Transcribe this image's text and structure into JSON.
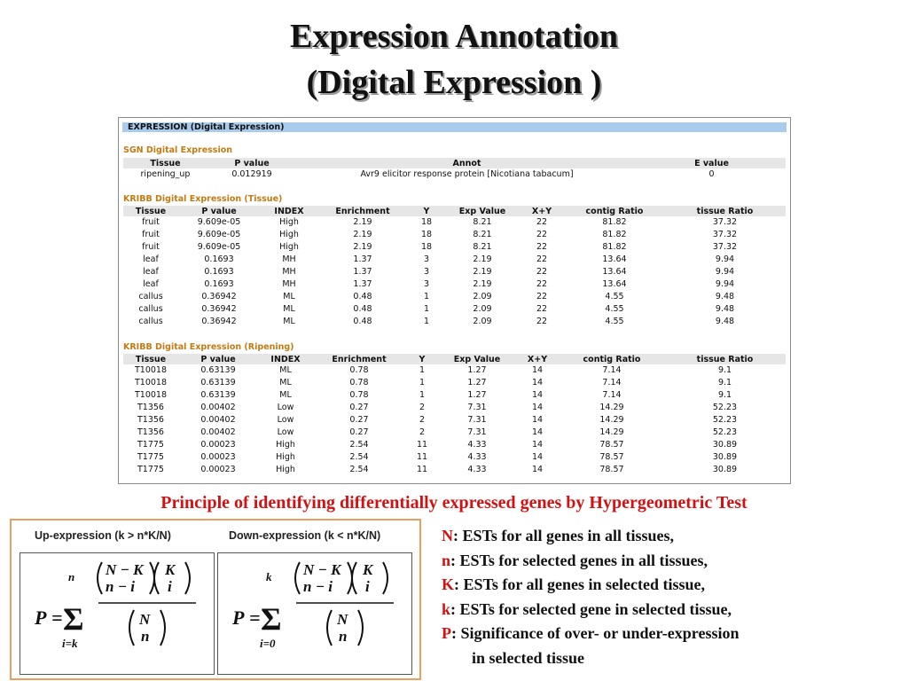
{
  "slide": {
    "title_line1": "Expression Annotation",
    "title_line2": "(Digital  Expression )",
    "principle": "Principle of identifying differentially expressed genes by Hypergeometric Test"
  },
  "panel": {
    "header": "EXPRESSION (Digital Expression)",
    "sgn": {
      "title": "SGN Digital Expression",
      "columns": [
        "Tissue",
        "P value",
        "Annot",
        "E value"
      ],
      "rows": [
        [
          "ripening_up",
          "0.012919",
          "Avr9 elicitor response protein [Nicotiana tabacum]",
          "0"
        ]
      ]
    },
    "tissue": {
      "title": "KRIBB Digital Expression (Tissue)",
      "columns": [
        "Tissue",
        "P value",
        "INDEX",
        "Enrichment",
        "Y",
        "Exp Value",
        "X+Y",
        "contig Ratio",
        "tissue Ratio"
      ],
      "rows": [
        [
          "fruit",
          "9.609e-05",
          "High",
          "2.19",
          "18",
          "8.21",
          "22",
          "81.82",
          "37.32"
        ],
        [
          "fruit",
          "9.609e-05",
          "High",
          "2.19",
          "18",
          "8.21",
          "22",
          "81.82",
          "37.32"
        ],
        [
          "fruit",
          "9.609e-05",
          "High",
          "2.19",
          "18",
          "8.21",
          "22",
          "81.82",
          "37.32"
        ],
        [
          "leaf",
          "0.1693",
          "MH",
          "1.37",
          "3",
          "2.19",
          "22",
          "13.64",
          "9.94"
        ],
        [
          "leaf",
          "0.1693",
          "MH",
          "1.37",
          "3",
          "2.19",
          "22",
          "13.64",
          "9.94"
        ],
        [
          "leaf",
          "0.1693",
          "MH",
          "1.37",
          "3",
          "2.19",
          "22",
          "13.64",
          "9.94"
        ],
        [
          "callus",
          "0.36942",
          "ML",
          "0.48",
          "1",
          "2.09",
          "22",
          "4.55",
          "9.48"
        ],
        [
          "callus",
          "0.36942",
          "ML",
          "0.48",
          "1",
          "2.09",
          "22",
          "4.55",
          "9.48"
        ],
        [
          "callus",
          "0.36942",
          "ML",
          "0.48",
          "1",
          "2.09",
          "22",
          "4.55",
          "9.48"
        ]
      ]
    },
    "ripening": {
      "title": "KRIBB Digital Expression (Ripening)",
      "columns": [
        "Tissue",
        "P value",
        "INDEX",
        "Enrichment",
        "Y",
        "Exp Value",
        "X+Y",
        "contig Ratio",
        "tissue Ratio"
      ],
      "rows": [
        [
          "T10018",
          "0.63139",
          "ML",
          "0.78",
          "1",
          "1.27",
          "14",
          "7.14",
          "9.1"
        ],
        [
          "T10018",
          "0.63139",
          "ML",
          "0.78",
          "1",
          "1.27",
          "14",
          "7.14",
          "9.1"
        ],
        [
          "T10018",
          "0.63139",
          "ML",
          "0.78",
          "1",
          "1.27",
          "14",
          "7.14",
          "9.1"
        ],
        [
          "T1356",
          "0.00402",
          "Low",
          "0.27",
          "2",
          "7.31",
          "14",
          "14.29",
          "52.23"
        ],
        [
          "T1356",
          "0.00402",
          "Low",
          "0.27",
          "2",
          "7.31",
          "14",
          "14.29",
          "52.23"
        ],
        [
          "T1356",
          "0.00402",
          "Low",
          "0.27",
          "2",
          "7.31",
          "14",
          "14.29",
          "52.23"
        ],
        [
          "T1775",
          "0.00023",
          "High",
          "2.54",
          "11",
          "4.33",
          "14",
          "78.57",
          "30.89"
        ],
        [
          "T1775",
          "0.00023",
          "High",
          "2.54",
          "11",
          "4.33",
          "14",
          "78.57",
          "30.89"
        ],
        [
          "T1775",
          "0.00023",
          "High",
          "2.54",
          "11",
          "4.33",
          "14",
          "78.57",
          "30.89"
        ]
      ]
    }
  },
  "formulas": {
    "up_label": "Up-expression (k > n*K/N)",
    "down_label": "Down-expression (k < n*K/N)",
    "P": "P",
    "eq": "=",
    "sum": "Σ",
    "up_lower": "i=k",
    "down_lower": "i=0",
    "up_upper": "n",
    "down_upper": "k",
    "num1_top": "N − K",
    "num1_bottom": "n − i",
    "num2_top": "K",
    "num2_bottom": "i",
    "den_top": "N",
    "den_bottom": "n"
  },
  "legend": [
    {
      "key": "N",
      "text": ": ESTs for all genes in all tissues,"
    },
    {
      "key": "n",
      "text": ": ESTs for selected genes in all tissues,"
    },
    {
      "key": "K",
      "text": ": ESTs for all genes in selected tissue,"
    },
    {
      "key": "k",
      "text": ": ESTs for selected gene in selected tissue,"
    },
    {
      "key": "P",
      "text": ": Significance of over- or under-expression"
    }
  ],
  "legend_continuation": "in selected tissue",
  "colors": {
    "key": "#d21212",
    "section_title": "#c47a12",
    "header_bar": "#a9cbec",
    "frame": "#e8a060"
  }
}
